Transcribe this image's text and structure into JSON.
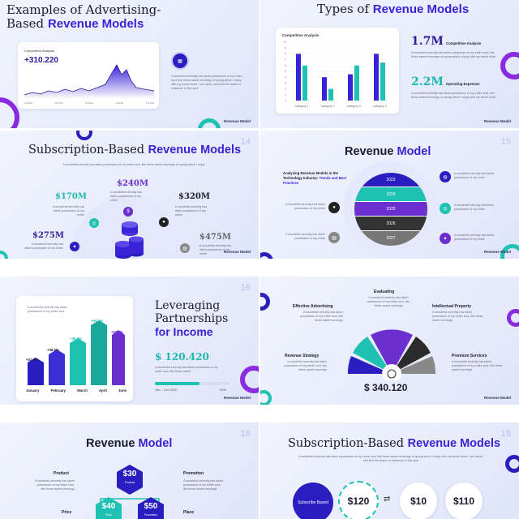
{
  "slide1": {
    "title_a": "Examples of Advertising-",
    "title_b": "Based",
    "title_hl": "Revenue Models",
    "card_label": "Competitive Analysis",
    "card_value": "+310.220",
    "dates": [
      "1/10/24",
      "1/17/24",
      "1/24/24",
      "1/31/24",
      "1/17/24"
    ],
    "body": "A wonderful serenity has taken possession of my entire soul, like these sweet mornings of spring which I enjoy with my whole heart. I am alone, and feel the charm of existence in this spot",
    "brand": "Revenue Model"
  },
  "slide2": {
    "title_a": "Types of",
    "title_hl": "Revenue Models",
    "chart_title": "Competitive Analysis",
    "stat1_value": "1.7M",
    "stat1_label": "Competitive Analysis",
    "stat1_body": "A wonderful serenity has taken possession of my entire soul, like these sweet mornings of spring which I enjoy with my whole heart.",
    "stat2_value": "2.2M",
    "stat2_label": "Operating Expenses",
    "stat2_body": "A wonderful serenity has taken possession of my entire soul, like these sweet mornings of spring which I enjoy with my whole heart.",
    "brand": "Revenue Model"
  },
  "chart_data": {
    "type": "bar",
    "title": "Competitive Analysis",
    "categories": [
      "Category 1",
      "Category 2",
      "Category 3",
      "Category 4"
    ],
    "series": [
      {
        "values": [
          8,
          4,
          4.5,
          8
        ]
      },
      {
        "values": [
          6,
          2,
          6,
          6.5
        ]
      }
    ],
    "ylim": [
      0,
      10
    ],
    "yticks": [
      "10",
      "9",
      "8",
      "7",
      "6",
      "5",
      "4",
      "3",
      "2",
      "1",
      "0"
    ],
    "colors": [
      "#3a22d6",
      "#1fc1b2"
    ]
  },
  "slide3": {
    "num": "14",
    "title_a": "Subscription-Based",
    "title_hl": "Revenue Models",
    "subtitle": "A wonderful serenity has taken possession of my entire soul, like these sweet mornings of spring which I enjoy",
    "v1": "$170M",
    "v2": "$240M",
    "v3": "$320M",
    "v4": "$275M",
    "v5": "$475M",
    "body": "A wonderful serenity has taken possession of my entire",
    "brand": "Revenue Model"
  },
  "slide4": {
    "num": "15",
    "title_a": "Revenue",
    "title_hl": "Model",
    "heading": "Analyzing Revenue Models in the Technology Industry:",
    "heading_hl": "Trends and Best Practices",
    "years": [
      "2023",
      "2024",
      "2025",
      "2026",
      "2027"
    ],
    "body": "A wonderful serenity has taken possession of my entire",
    "brand": "Revenue Model"
  },
  "slide5": {
    "num": "16",
    "title_a": "Leveraging",
    "title_b": "Partnerships",
    "title_hl": "for Income",
    "value": "$ 120.420",
    "body": "A wonderful serenity has taken possession of my entire soul, like these sweet",
    "range": "Jan – Oct 2024",
    "pct": "60%",
    "bar_months": [
      "January",
      "February",
      "March",
      "April",
      "June"
    ],
    "bar_labels": [
      "+31.5%",
      "+36.5%",
      "+48.3%",
      "+64.5%",
      "+52.1%"
    ],
    "note": "A wonderful serenity has taken possession of my entire soul",
    "brand": "Revenue Model"
  },
  "slide6": {
    "labels": [
      "Evaluating",
      "Effective Advertising",
      "Intellectual Property",
      "Revenue Strategy",
      "Premium Services"
    ],
    "body": "A wonderful serenity has taken possession of my entire soul, like these sweet mornings",
    "value": "$ 340.120",
    "brand": "Revenue Model"
  },
  "slide7": {
    "num": "18",
    "title_a": "Revenue",
    "title_hl": "Model",
    "left1": "Product",
    "left2": "Price",
    "right1": "Promotion",
    "right2": "Place",
    "hex1_value": "$30",
    "hex1_label": "Product",
    "hex2_value": "$40",
    "hex2_label": "Price",
    "hex3_value": "$50",
    "hex3_label": "Promotion",
    "body": "A wonderful serenity has taken possession of my entire soul, like these sweet mornings"
  },
  "slide8": {
    "num": "19",
    "title_a": "Subscription-Based",
    "title_hl": "Revenue Models",
    "subtitle": "A wonderful serenity has taken possession of my entire soul, like these sweet mornings of spring which I enjoy with my whole heart. I am alone, and feel the charm of existence in this spot",
    "circle1": "Subscribe Based",
    "p1": "$120",
    "p2": "$10",
    "p3": "$110"
  }
}
